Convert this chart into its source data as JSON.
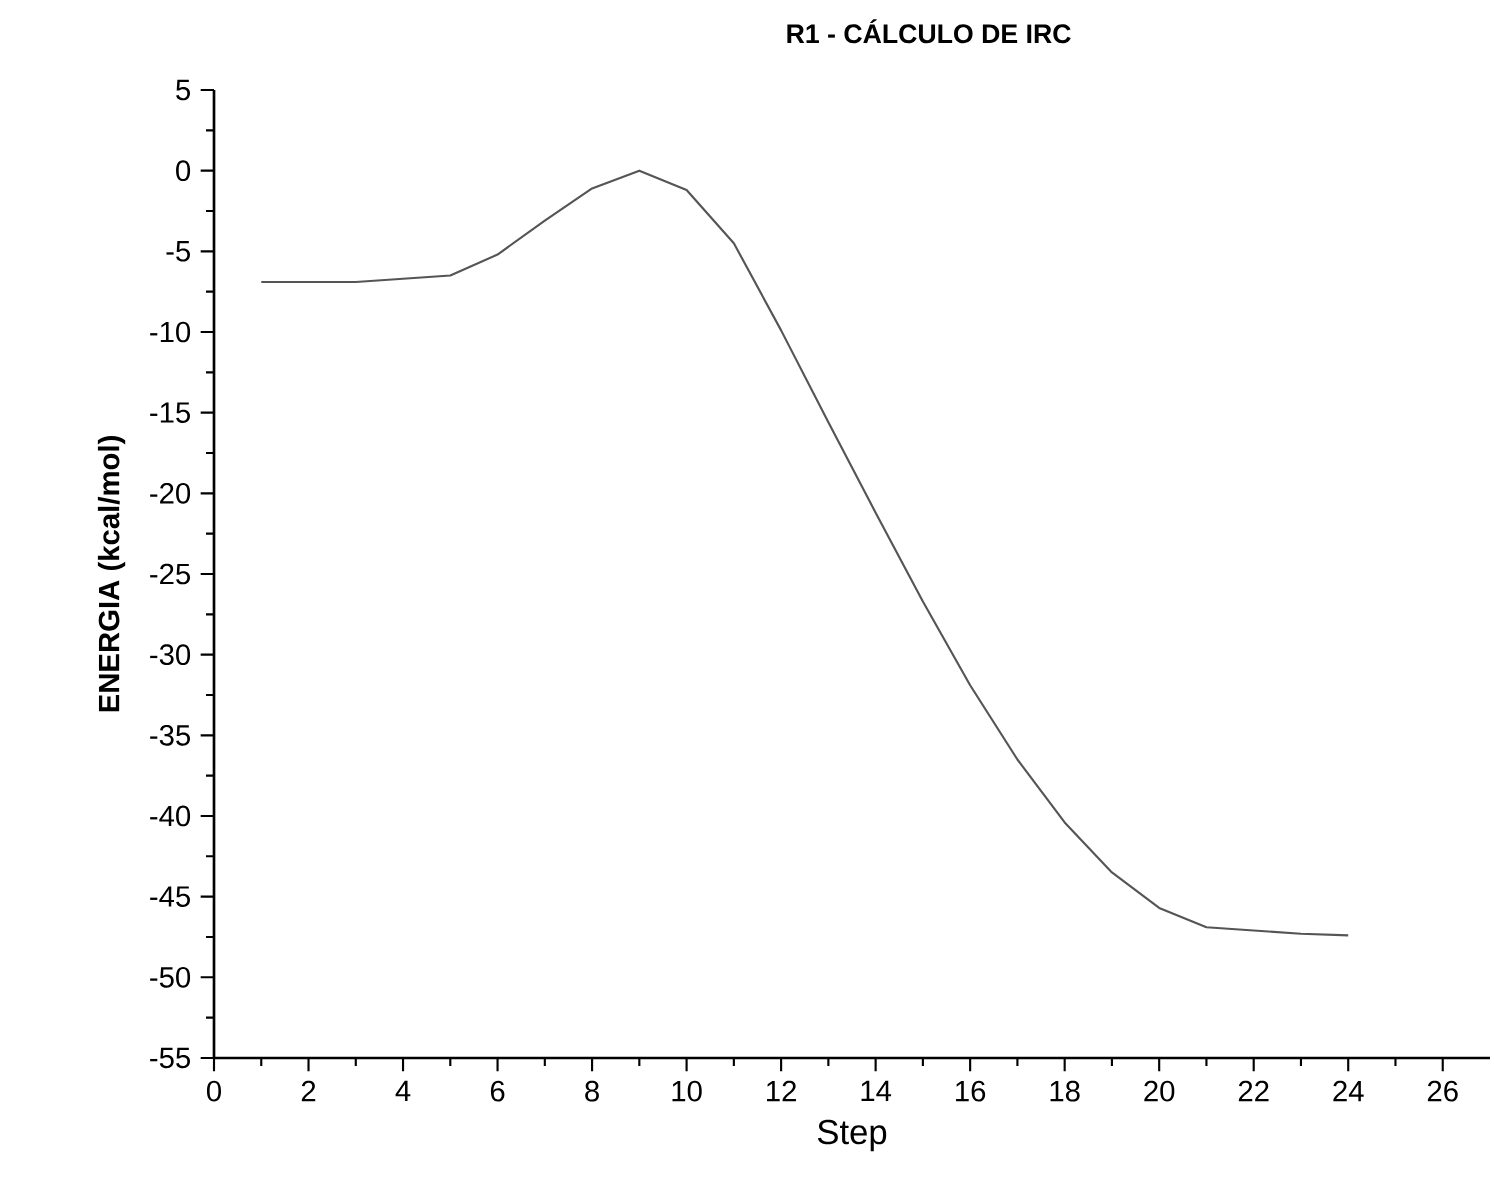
{
  "chart_data": {
    "type": "line",
    "title": "**R1 - CÁLCULO DE IRC**",
    "xlabel": "Step",
    "ylabel": "**ENERGIA (kcal/mol)**",
    "x": [
      1,
      2,
      3,
      4,
      5,
      6,
      7,
      8,
      9,
      10,
      11,
      12,
      13,
      14,
      15,
      16,
      17,
      18,
      19,
      20,
      21,
      22,
      23,
      24
    ],
    "values": [
      -6.9,
      -6.9,
      -6.9,
      -6.7,
      -6.5,
      -5.2,
      -3.1,
      -1.1,
      0,
      -1.2,
      -4.5,
      -9.9,
      -15.6,
      -21.2,
      -26.7,
      -31.9,
      -36.5,
      -40.4,
      -43.5,
      -45.7,
      -46.9,
      -47.1,
      -47.3,
      -47.4
    ],
    "color": "#555555",
    "xlim": [
      0,
      27
    ],
    "ylim": [
      -55,
      5
    ],
    "xticks": [
      0,
      2,
      4,
      6,
      8,
      10,
      12,
      14,
      16,
      18,
      20,
      22,
      24,
      26
    ],
    "yticks": [
      5,
      0,
      -5,
      -10,
      -15,
      -20,
      -25,
      -30,
      -35,
      -40,
      -45,
      -50,
      -55
    ]
  }
}
